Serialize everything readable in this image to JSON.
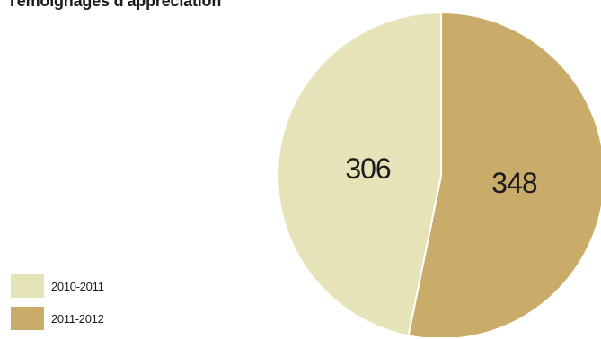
{
  "chart_data": {
    "type": "pie",
    "title": "Témoignages d'appréciation",
    "categories": [
      "2010-2011",
      "2011-2012"
    ],
    "values": [
      306,
      348
    ],
    "colors": [
      "#e6e3b8",
      "#c9ac6a"
    ],
    "legend_position": "bottom-left"
  }
}
